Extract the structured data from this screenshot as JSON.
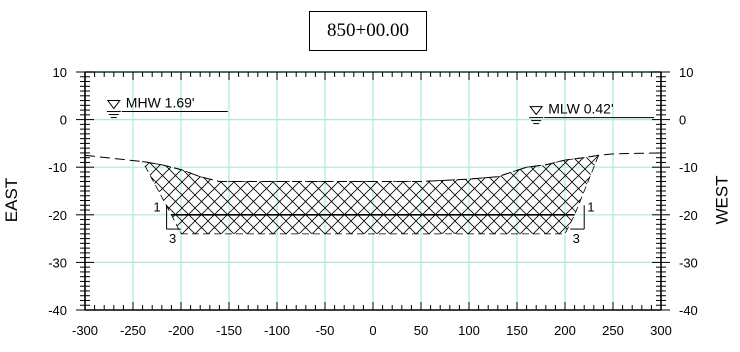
{
  "title": "850+00.00",
  "chart_data": {
    "type": "line",
    "title": "850+00.00",
    "xlim": [
      -300,
      300
    ],
    "ylim": [
      -40,
      10
    ],
    "x_ticks": [
      -300,
      -250,
      -200,
      -150,
      -100,
      -50,
      0,
      50,
      100,
      150,
      200,
      250,
      300
    ],
    "y_ticks": [
      10,
      0,
      -10,
      -20,
      -30,
      -40
    ],
    "left_axis_label": "EAST",
    "right_axis_label": "WEST",
    "grid": true,
    "series": [
      {
        "style": "dashed",
        "x": [
          -300,
          -255,
          -240,
          -220,
          -200,
          -180,
          -160,
          -100,
          -50,
          0,
          50,
          100,
          130,
          160,
          180,
          200,
          220,
          235,
          250,
          300
        ],
        "y": [
          -7.5,
          -8.5,
          -8.8,
          -9.5,
          -10.5,
          -12,
          -13,
          -13,
          -13,
          -13,
          -13,
          -12.5,
          -12,
          -10,
          -9.5,
          -8.5,
          -8,
          -7.5,
          -7.2,
          -7
        ]
      },
      {
        "style": "hatched",
        "x": [
          -240,
          -220,
          -200,
          -180,
          -160,
          -100,
          -50,
          0,
          50,
          100,
          130,
          160,
          180,
          200,
          220,
          235,
          210,
          200,
          -200,
          -210
        ],
        "y": [
          -8.8,
          -9.5,
          -10.5,
          -12,
          -13,
          -13,
          -13,
          -13,
          -13,
          -12.5,
          -12,
          -10,
          -9.5,
          -8.5,
          -8,
          -7.5,
          -20,
          -24,
          -24,
          -20
        ]
      },
      {
        "style": "solid",
        "x": [
          -210,
          210
        ],
        "y": [
          -20,
          -20
        ]
      }
    ],
    "annotations": [
      {
        "text": "MHW  1.69'",
        "x": -270,
        "y": 1.69
      },
      {
        "text": "MLW  0.42'",
        "x": 170,
        "y": 0.42
      }
    ],
    "slope_labels": [
      {
        "rise": "1",
        "run": "3",
        "side": "left"
      },
      {
        "rise": "1",
        "run": "3",
        "side": "right"
      }
    ]
  }
}
